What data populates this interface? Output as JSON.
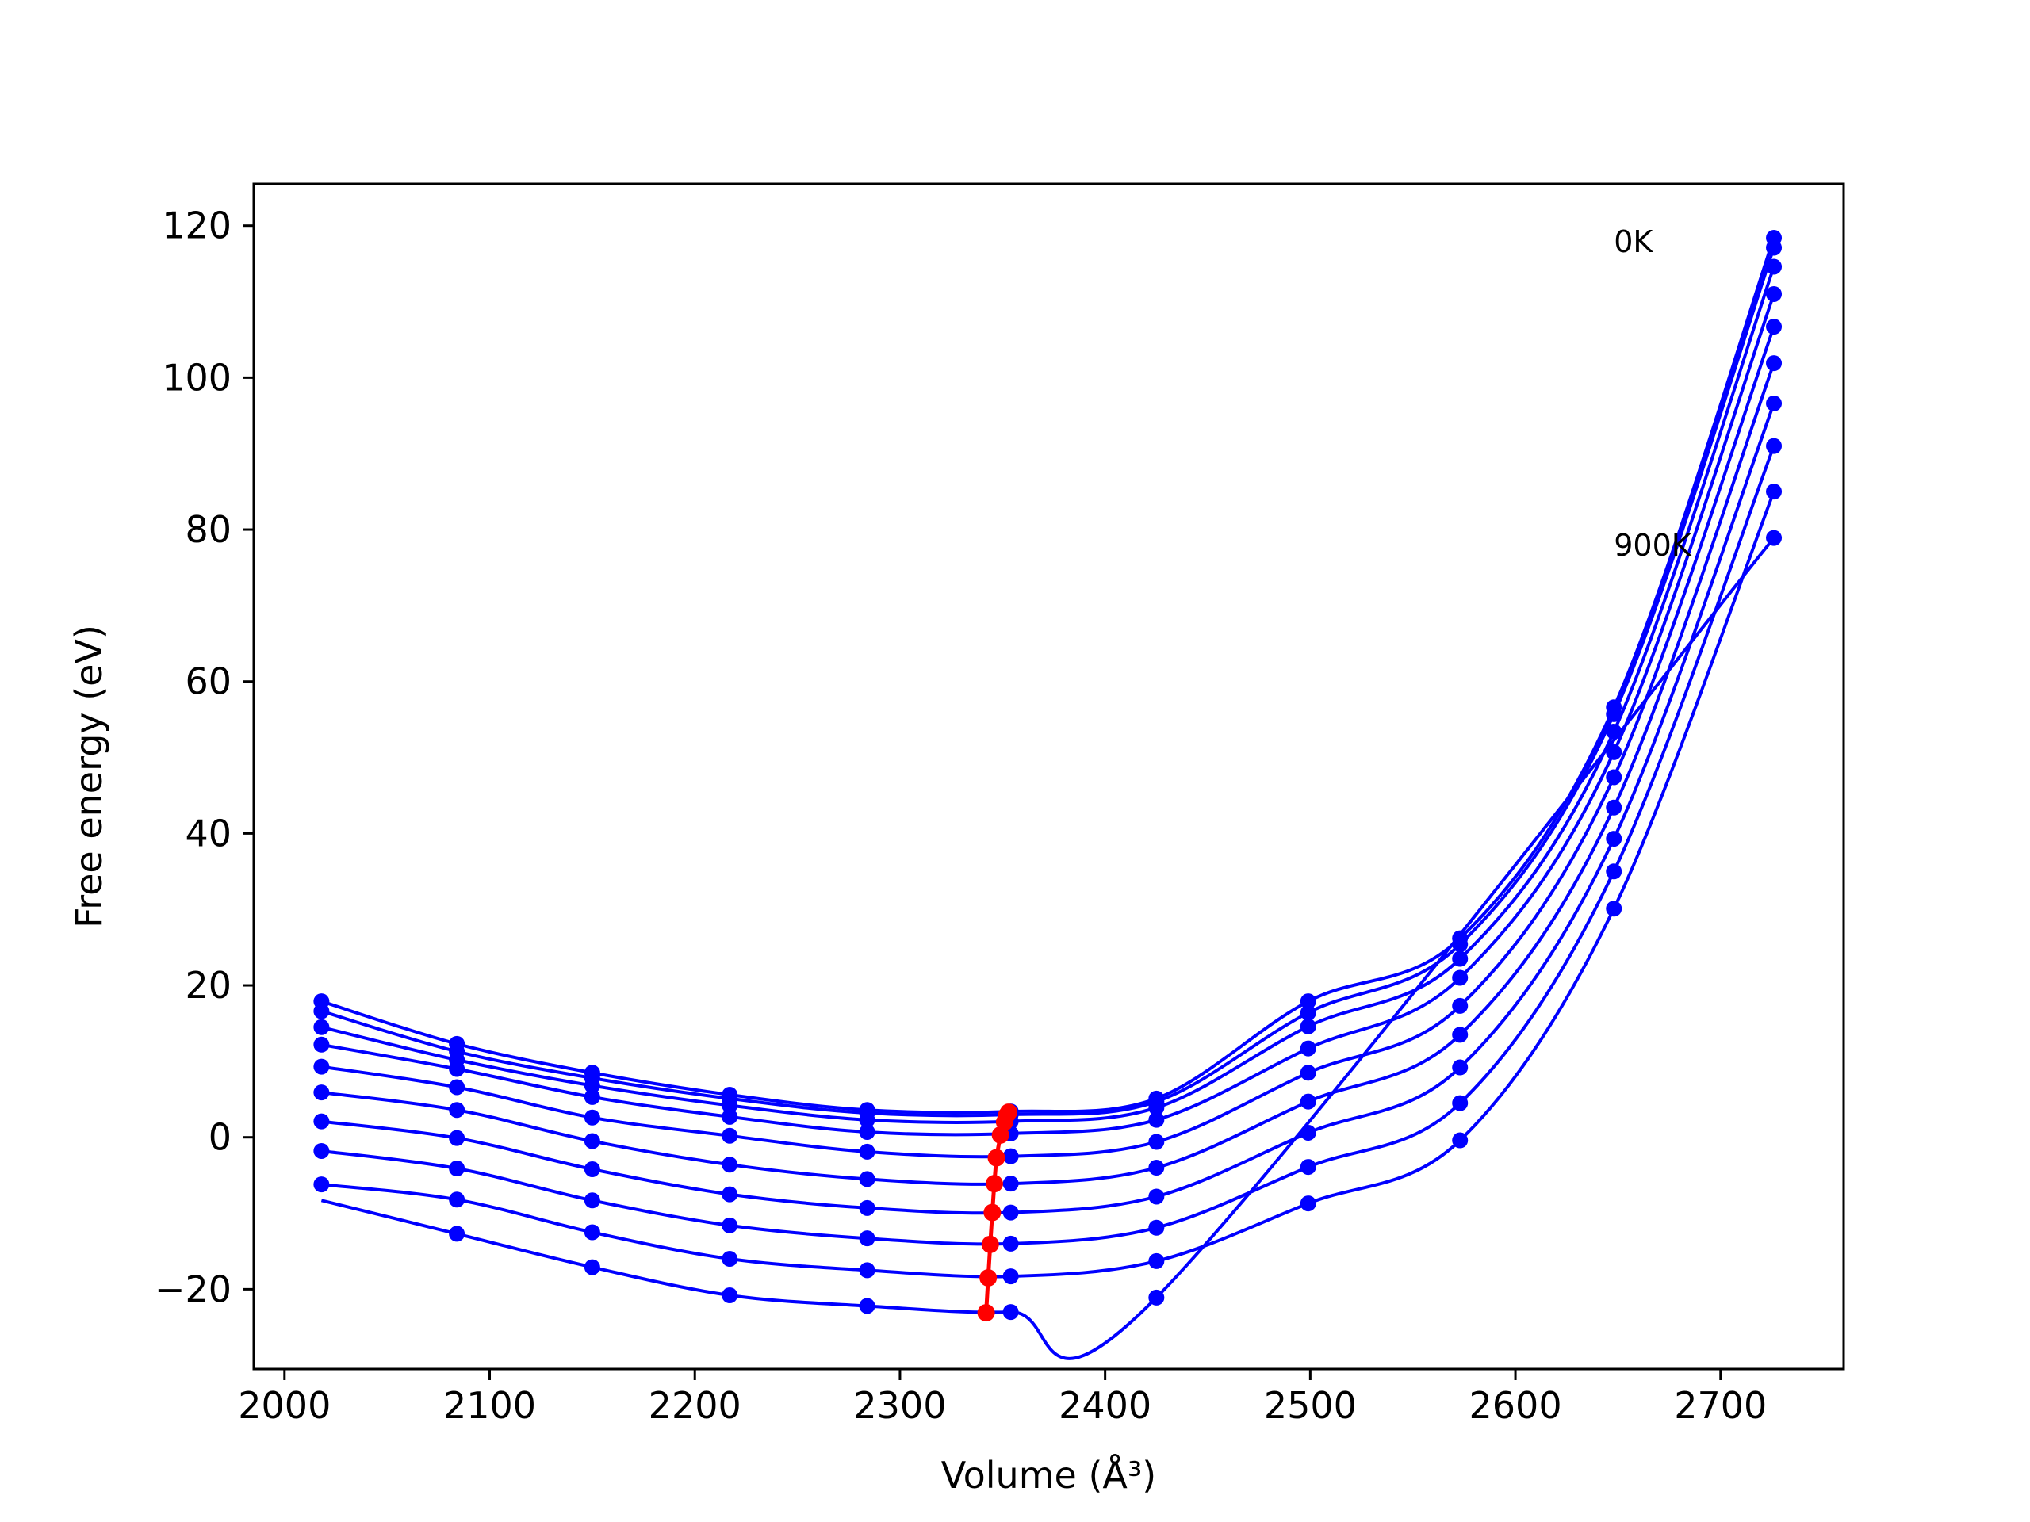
{
  "chart_data": {
    "type": "scatter",
    "title": "",
    "xlabel": "Volume (Å³)",
    "ylabel": "Free energy (eV)",
    "xlim": [
      1985,
      2760
    ],
    "ylim": [
      -30.5,
      125.5
    ],
    "xticks": [
      2000,
      2100,
      2200,
      2300,
      2400,
      2500,
      2600,
      2700
    ],
    "yticks": [
      -20,
      0,
      20,
      40,
      60,
      80,
      100,
      120
    ],
    "ytick_labels": [
      "−20",
      "0",
      "20",
      "40",
      "60",
      "80",
      "100",
      "120"
    ],
    "grid": false,
    "legend": "none",
    "annotations": [
      {
        "text": "0K",
        "x": 2648,
        "y": 118
      },
      {
        "text": "900K",
        "x": 2648,
        "y": 78
      }
    ],
    "colors": {
      "series": "#0000ff",
      "minima": "#ff0000"
    },
    "x": [
      2018,
      2084,
      2150,
      2217,
      2284,
      2354,
      2425,
      2499,
      2573,
      2648,
      2726
    ],
    "series": [
      {
        "values": [
          17.9,
          12.3,
          8.5,
          5.6,
          3.6,
          3.4,
          5.1,
          17.9,
          26.2,
          56.6,
          118.4
        ]
      },
      {
        "values": [
          16.6,
          11.3,
          7.8,
          5.1,
          3.2,
          3.0,
          4.7,
          16.4,
          25.4,
          55.7,
          117.1
        ]
      },
      {
        "values": [
          14.5,
          10.2,
          6.8,
          4.2,
          2.3,
          2.1,
          3.9,
          14.6,
          23.5,
          53.4,
          114.6
        ]
      },
      {
        "values": [
          12.2,
          9.0,
          5.3,
          2.7,
          0.7,
          0.5,
          2.3,
          11.7,
          21.0,
          50.7,
          111.0
        ]
      },
      {
        "values": [
          9.3,
          6.6,
          2.6,
          0.2,
          -1.9,
          -2.5,
          -0.6,
          8.5,
          17.3,
          47.4,
          106.7
        ]
      },
      {
        "values": [
          5.9,
          3.6,
          -0.5,
          -3.6,
          -5.5,
          -6.1,
          -4.0,
          4.7,
          13.5,
          43.4,
          101.9
        ]
      },
      {
        "values": [
          2.1,
          -0.1,
          -4.2,
          -7.5,
          -9.3,
          -9.9,
          -7.8,
          0.6,
          9.2,
          39.3,
          96.6
        ]
      },
      {
        "values": [
          -1.8,
          -4.1,
          -8.3,
          -11.6,
          -13.3,
          -14.0,
          -11.9,
          -3.9,
          4.5,
          35.0,
          91.0
        ]
      },
      {
        "values": [
          -6.2,
          -8.2,
          -12.5,
          -16.0,
          -17.5,
          -18.3,
          -16.3,
          -8.7,
          -0.4,
          30.1,
          85.0
        ]
      },
      {
        "values": [
          null,
          -12.7,
          -17.1,
          -20.8,
          -22.2,
          -23.0,
          -21.1,
          null,
          null,
          null,
          78.9
        ]
      }
    ],
    "minima": {
      "x": [
        2353,
        2352,
        2351,
        2349,
        2347,
        2346,
        2345,
        2344,
        2343,
        2342
      ],
      "y": [
        3.3,
        2.9,
        2.0,
        0.3,
        -2.7,
        -6.1,
        -9.9,
        -14.1,
        -18.5,
        -23.1
      ]
    }
  }
}
